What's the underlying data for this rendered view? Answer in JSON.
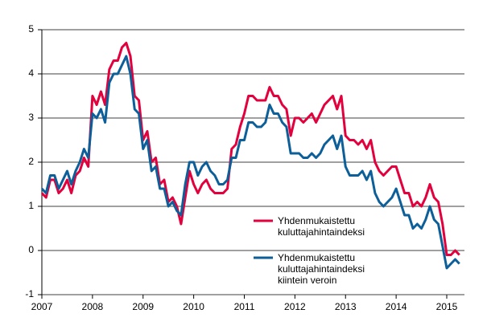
{
  "chart_data": {
    "type": "line",
    "x": [
      2007,
      2007.083,
      2007.167,
      2007.25,
      2007.333,
      2007.417,
      2007.5,
      2007.583,
      2007.667,
      2007.75,
      2007.833,
      2007.917,
      2008,
      2008.083,
      2008.167,
      2008.25,
      2008.333,
      2008.417,
      2008.5,
      2008.583,
      2008.667,
      2008.75,
      2008.833,
      2008.917,
      2009,
      2009.083,
      2009.167,
      2009.25,
      2009.333,
      2009.417,
      2009.5,
      2009.583,
      2009.667,
      2009.75,
      2009.833,
      2009.917,
      2010,
      2010.083,
      2010.167,
      2010.25,
      2010.333,
      2010.417,
      2010.5,
      2010.583,
      2010.667,
      2010.75,
      2010.833,
      2010.917,
      2011,
      2011.083,
      2011.167,
      2011.25,
      2011.333,
      2011.417,
      2011.5,
      2011.583,
      2011.667,
      2011.75,
      2011.833,
      2011.917,
      2012,
      2012.083,
      2012.167,
      2012.25,
      2012.333,
      2012.417,
      2012.5,
      2012.583,
      2012.667,
      2012.75,
      2012.833,
      2012.917,
      2013,
      2013.083,
      2013.167,
      2013.25,
      2013.333,
      2013.417,
      2013.5,
      2013.583,
      2013.667,
      2013.75,
      2013.833,
      2013.917,
      2014,
      2014.083,
      2014.167,
      2014.25,
      2014.333,
      2014.417,
      2014.5,
      2014.583,
      2014.667,
      2014.75,
      2014.833,
      2014.917,
      2015,
      2015.083,
      2015.167,
      2015.25
    ],
    "series": [
      {
        "name": "Yhdenmukaistettu kuluttajahintaindeksi",
        "color": "#e2003d",
        "values": [
          1.3,
          1.2,
          1.6,
          1.6,
          1.3,
          1.4,
          1.6,
          1.3,
          1.7,
          1.8,
          2.1,
          1.9,
          3.5,
          3.3,
          3.6,
          3.3,
          4.1,
          4.3,
          4.3,
          4.6,
          4.7,
          4.4,
          3.5,
          3.4,
          2.5,
          2.7,
          2.0,
          2.1,
          1.5,
          1.6,
          1.1,
          1.2,
          1.0,
          0.6,
          1.2,
          1.8,
          1.5,
          1.3,
          1.5,
          1.6,
          1.4,
          1.3,
          1.3,
          1.3,
          1.4,
          2.3,
          2.4,
          2.8,
          3.1,
          3.5,
          3.5,
          3.4,
          3.4,
          3.4,
          3.7,
          3.5,
          3.5,
          3.3,
          3.2,
          2.6,
          3.0,
          3.0,
          2.9,
          3.0,
          3.1,
          2.9,
          3.1,
          3.3,
          3.4,
          3.5,
          3.2,
          3.5,
          2.6,
          2.5,
          2.5,
          2.4,
          2.5,
          2.3,
          2.5,
          2.0,
          1.8,
          1.7,
          1.8,
          1.9,
          1.9,
          1.6,
          1.3,
          1.3,
          1.0,
          1.1,
          1.0,
          1.2,
          1.5,
          1.2,
          1.1,
          0.6,
          -0.1,
          -0.1,
          0.0,
          -0.1
        ]
      },
      {
        "name": "Yhdenmukaistettu kuluttajahintaindeksi kiintein veroin",
        "color": "#0d5f99",
        "values": [
          1.4,
          1.3,
          1.7,
          1.7,
          1.4,
          1.6,
          1.8,
          1.5,
          1.8,
          2.0,
          2.3,
          2.1,
          3.1,
          3.0,
          3.2,
          2.9,
          3.8,
          4.0,
          4.0,
          4.2,
          4.4,
          4.0,
          3.2,
          3.1,
          2.3,
          2.5,
          1.8,
          1.9,
          1.4,
          1.4,
          1.0,
          1.1,
          0.9,
          0.8,
          1.5,
          2.0,
          2.0,
          1.7,
          1.9,
          2.0,
          1.8,
          1.7,
          1.5,
          1.5,
          1.6,
          2.1,
          2.1,
          2.5,
          2.5,
          2.9,
          2.9,
          2.8,
          2.8,
          2.9,
          3.3,
          3.1,
          3.1,
          2.9,
          2.8,
          2.2,
          2.2,
          2.2,
          2.1,
          2.1,
          2.2,
          2.1,
          2.2,
          2.4,
          2.5,
          2.6,
          2.3,
          2.6,
          1.9,
          1.7,
          1.7,
          1.7,
          1.8,
          1.6,
          1.8,
          1.3,
          1.1,
          1.0,
          1.1,
          1.2,
          1.4,
          1.1,
          0.8,
          0.8,
          0.5,
          0.6,
          0.5,
          0.7,
          1.0,
          0.7,
          0.6,
          0.1,
          -0.4,
          -0.3,
          -0.2,
          -0.3
        ]
      }
    ],
    "xlim": [
      2007,
      2015.35
    ],
    "xticks": [
      2007,
      2008,
      2009,
      2010,
      2011,
      2012,
      2013,
      2014,
      2015
    ],
    "ylim": [
      -1,
      5
    ],
    "yticks": [
      -1,
      0,
      1,
      2,
      3,
      4,
      5
    ],
    "grid": true,
    "legend": "lower right"
  }
}
